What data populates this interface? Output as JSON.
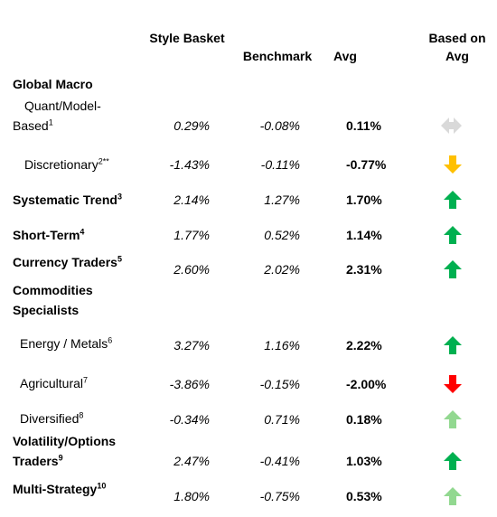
{
  "header": {
    "basket": "Style Basket",
    "benchmark": "Benchmark",
    "avg": "Avg",
    "indicator": "Based on Avg"
  },
  "rows": [
    {
      "label": "Global Macro"
    },
    {
      "label": "Quant/Model-Based",
      "note": "1",
      "basket": "0.29%",
      "benchmark": "-0.08%",
      "avg": "0.11%",
      "arrow": {
        "dir": "both",
        "color": "#d9d9d9"
      }
    },
    {
      "label": "Discretionary",
      "note": "2**",
      "basket": "-1.43%",
      "benchmark": "-0.11%",
      "avg": "-0.77%",
      "arrow": {
        "dir": "down",
        "color": "#ffc000"
      }
    },
    {
      "label": "Systematic Trend",
      "note": "3",
      "basket": "2.14%",
      "benchmark": "1.27%",
      "avg": "1.70%",
      "arrow": {
        "dir": "up",
        "color": "#00b050"
      }
    },
    {
      "label": "Short-Term",
      "note": "4",
      "basket": "1.77%",
      "benchmark": "0.52%",
      "avg": "1.14%",
      "arrow": {
        "dir": "up",
        "color": "#00b050"
      }
    },
    {
      "label": "Currency Traders",
      "note": "5",
      "basket": "2.60%",
      "benchmark": "2.02%",
      "avg": "2.31%",
      "arrow": {
        "dir": "up",
        "color": "#00b050"
      }
    },
    {
      "label": "Commodities Specialists"
    },
    {
      "label": "Energy / Metals",
      "note": "6",
      "basket": "3.27%",
      "benchmark": "1.16%",
      "avg": "2.22%",
      "arrow": {
        "dir": "up",
        "color": "#00b050"
      }
    },
    {
      "label": "Agricultural",
      "note": "7",
      "basket": "-3.86%",
      "benchmark": "-0.15%",
      "avg": "-2.00%",
      "arrow": {
        "dir": "down",
        "color": "#ff0000"
      }
    },
    {
      "label": "Diversified",
      "note": "8",
      "basket": "-0.34%",
      "benchmark": "0.71%",
      "avg": "0.18%",
      "arrow": {
        "dir": "up",
        "color": "#92d890"
      }
    },
    {
      "label": "Volatility/Options Traders",
      "note": "9",
      "basket": "2.47%",
      "benchmark": "-0.41%",
      "avg": "1.03%",
      "arrow": {
        "dir": "up",
        "color": "#00b050"
      }
    },
    {
      "label": "Multi-Strategy",
      "note": "10",
      "basket": "1.80%",
      "benchmark": "-0.75%",
      "avg": "0.53%",
      "arrow": {
        "dir": "up",
        "color": "#92d890"
      }
    }
  ]
}
